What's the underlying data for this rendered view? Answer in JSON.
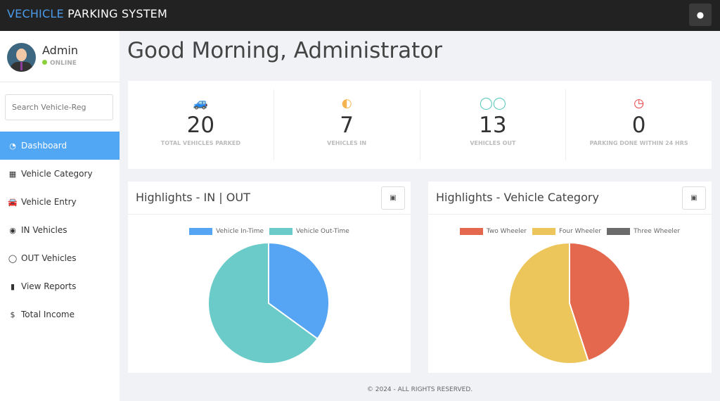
{
  "header": {
    "brand_accent": "VECHICLE",
    "brand_rest": " PARKING SYSTEM",
    "user_icon": "user-circle-icon"
  },
  "profile": {
    "name": "Admin",
    "status": "ONLINE"
  },
  "search": {
    "placeholder": "Search Vehicle-Reg"
  },
  "nav": [
    {
      "label": "Dashboard",
      "icon": "dashboard-icon",
      "glyph": "◔",
      "active": true
    },
    {
      "label": "Vehicle Category",
      "icon": "grid-icon",
      "glyph": "▦"
    },
    {
      "label": "Vehicle Entry",
      "icon": "car-icon",
      "glyph": "🚘"
    },
    {
      "label": "IN Vehicles",
      "icon": "toggle-on-icon",
      "glyph": "◉"
    },
    {
      "label": "OUT Vehicles",
      "icon": "toggle-off-icon",
      "glyph": "◯"
    },
    {
      "label": "View Reports",
      "icon": "file-icon",
      "glyph": "▮"
    },
    {
      "label": "Total Income",
      "icon": "dollar-icon",
      "glyph": "$"
    }
  ],
  "greeting": "Good Morning, Administrator",
  "stats": [
    {
      "value": "20",
      "label": "TOTAL VEHICLES PARKED",
      "icon": "car-icon",
      "color": "#52a7f5"
    },
    {
      "value": "7",
      "label": "VEHICLES IN",
      "icon": "toggle-on-icon",
      "color": "#f4b350"
    },
    {
      "value": "13",
      "label": "VEHICLES OUT",
      "icon": "toggle-off-icon",
      "color": "#5fc9bd"
    },
    {
      "value": "0",
      "label": "PARKING DONE WITHIN 24 HRS",
      "icon": "clock-icon",
      "color": "#e23a3a"
    }
  ],
  "chart_data": [
    {
      "type": "pie",
      "title": "Highlights - IN | OUT",
      "legend": "top",
      "categories": [
        "Vehicle In-Time",
        "Vehicle Out-Time"
      ],
      "values": [
        7,
        13
      ],
      "colors": [
        "#56a4f4",
        "#6acbc9"
      ]
    },
    {
      "type": "pie",
      "title": "Highlights - Vehicle Category",
      "legend": "top",
      "categories": [
        "Two Wheeler",
        "Four Wheeler",
        "Three Wheeler"
      ],
      "values": [
        9,
        11,
        0
      ],
      "colors": [
        "#e4684e",
        "#ecc55b",
        "#6b6b6b"
      ]
    }
  ],
  "footer": "© 2024 - ALL RIGHTS RESERVED."
}
